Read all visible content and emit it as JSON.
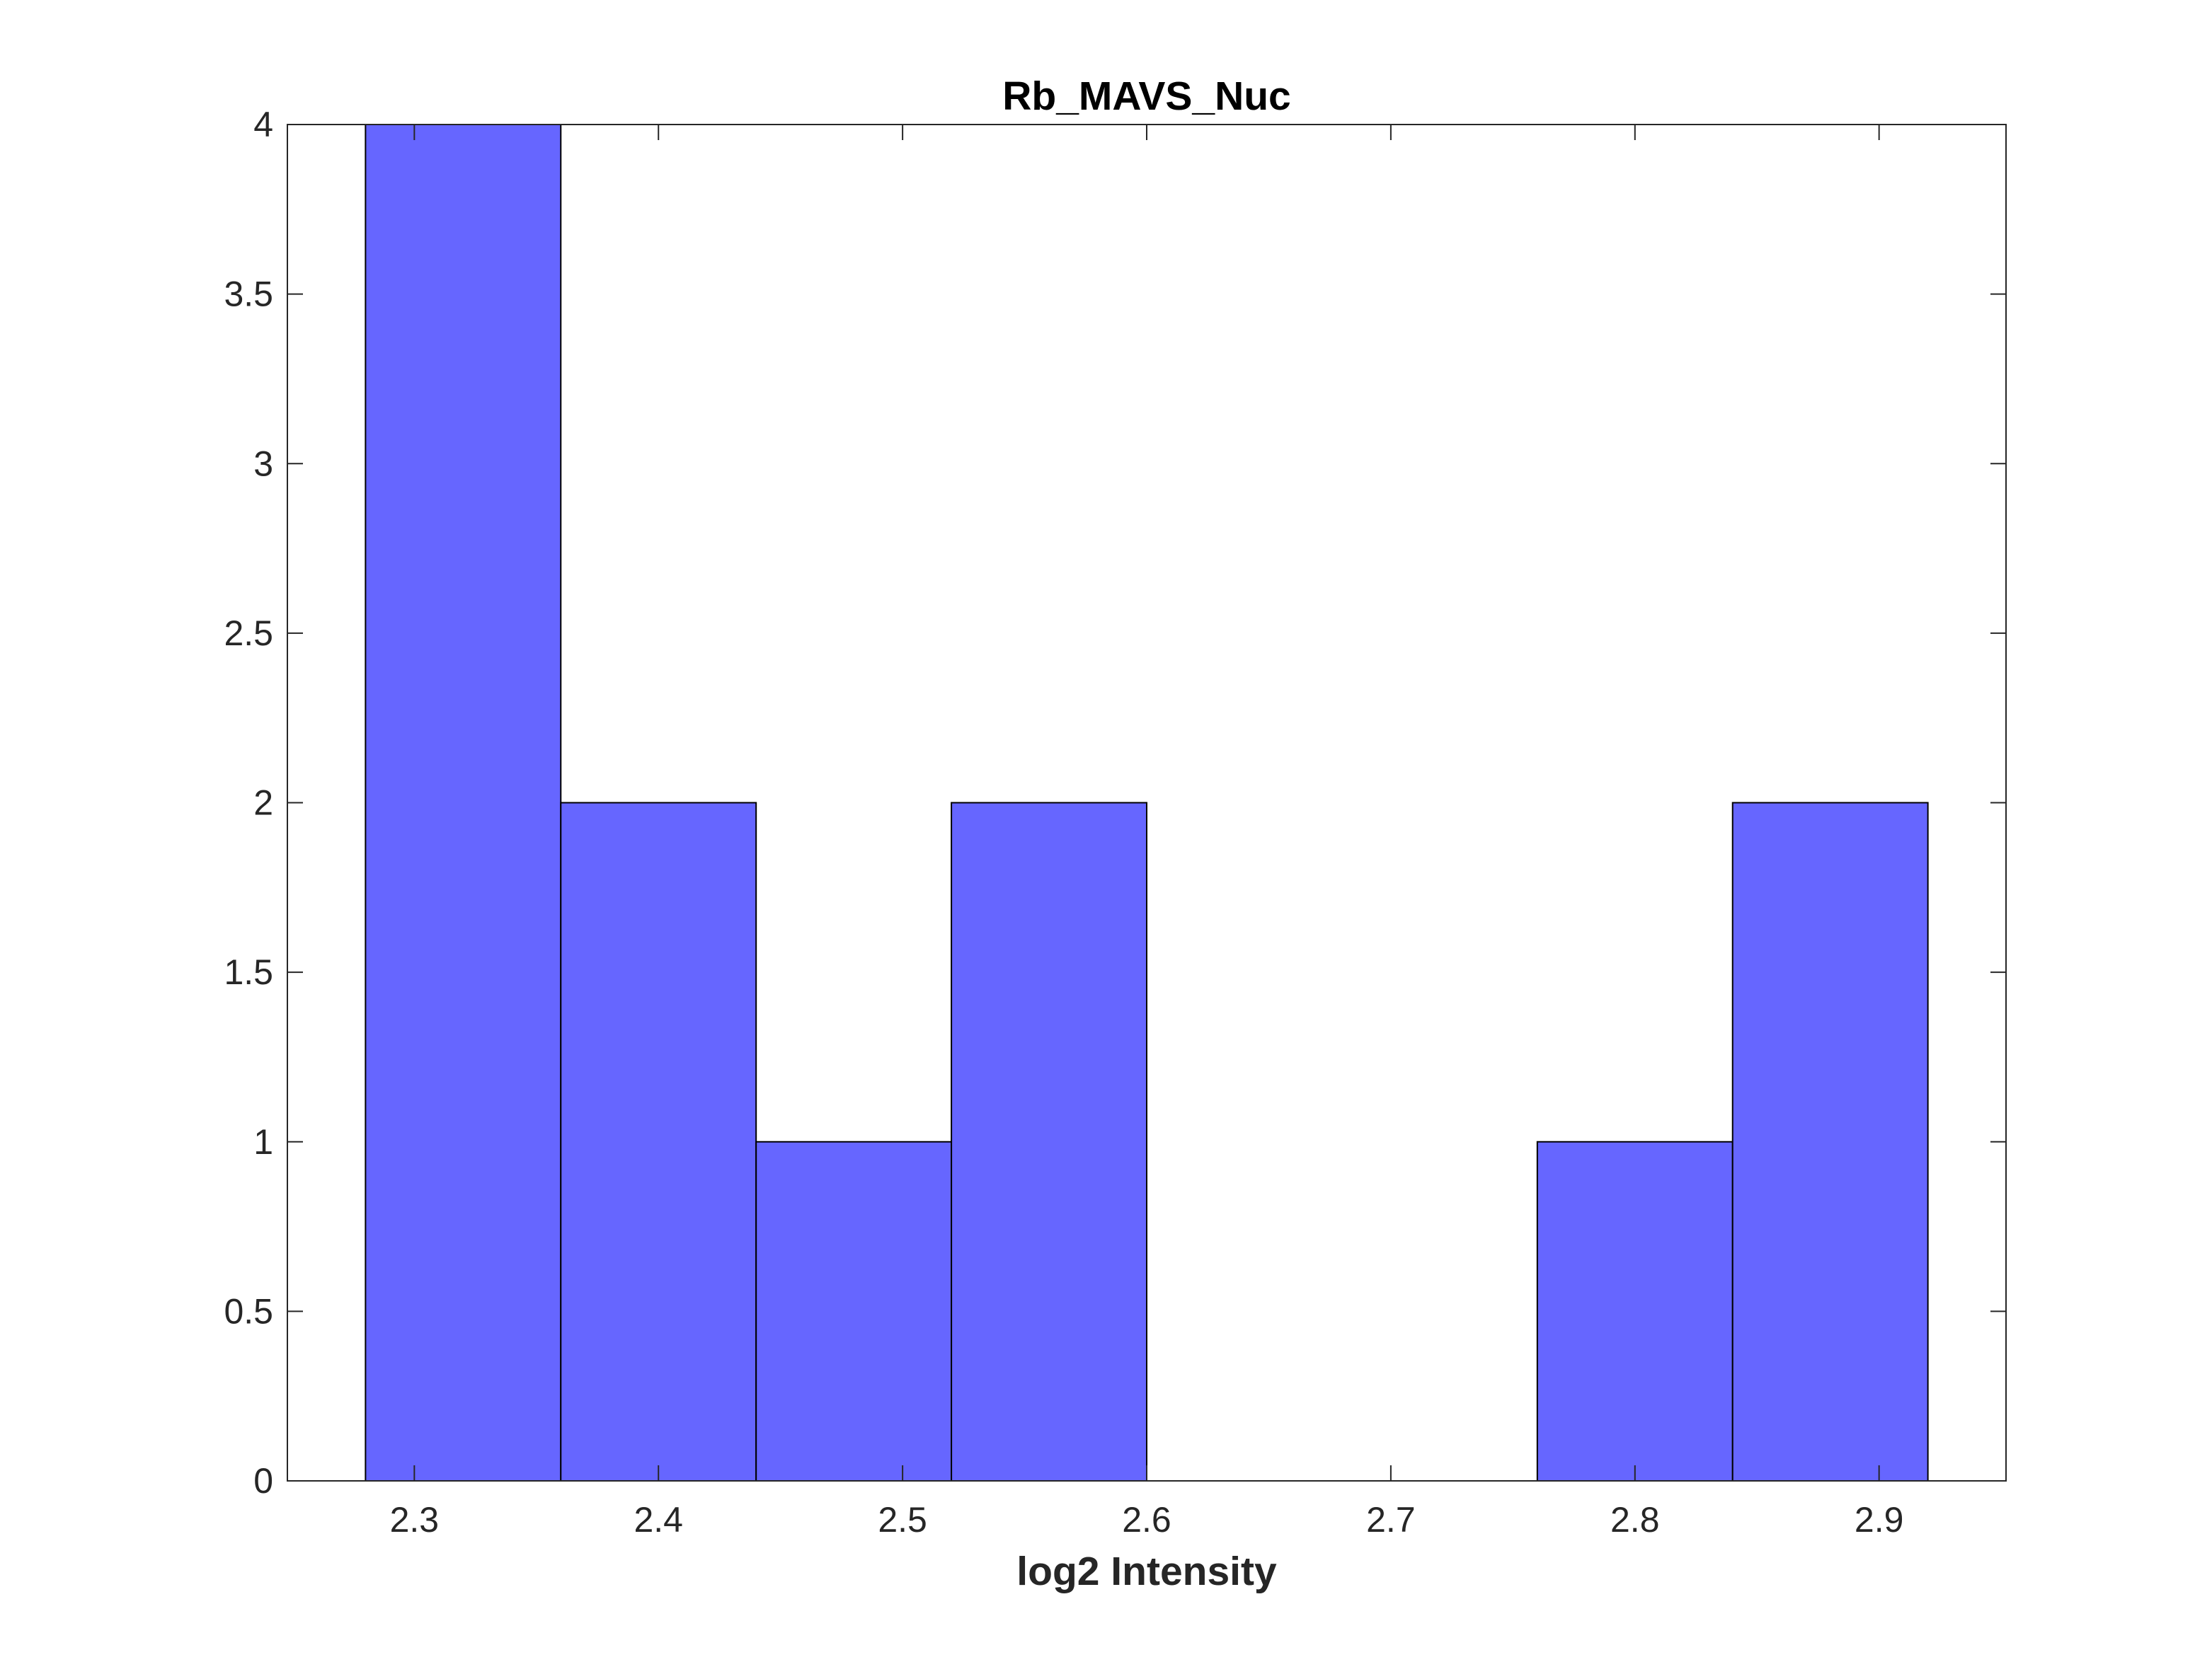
{
  "chart_data": {
    "type": "bar",
    "subtype": "histogram",
    "title": "Rb_MAVS_Nuc",
    "xlabel": "log2 Intensity",
    "ylabel": "",
    "bin_edges": [
      2.28,
      2.36,
      2.44,
      2.52,
      2.6,
      2.68,
      2.76,
      2.84,
      2.92
    ],
    "values": [
      4,
      2,
      1,
      2,
      0,
      0,
      1,
      2
    ],
    "xlim": [
      2.248,
      2.952
    ],
    "ylim": [
      0,
      4
    ],
    "xticks": [
      "2.3",
      "2.4",
      "2.5",
      "2.6",
      "2.7",
      "2.8",
      "2.9"
    ],
    "xtick_values": [
      2.3,
      2.4,
      2.5,
      2.6,
      2.7,
      2.8,
      2.9
    ],
    "yticks": [
      "0",
      "0.5",
      "1",
      "1.5",
      "2",
      "2.5",
      "3",
      "3.5",
      "4"
    ],
    "ytick_values": [
      0,
      0.5,
      1,
      1.5,
      2,
      2.5,
      3,
      3.5,
      4
    ],
    "grid": false,
    "legend": "none",
    "bar_color": "#6666ff",
    "bar_edge_color": "#000000",
    "axis_color": "#262626"
  }
}
